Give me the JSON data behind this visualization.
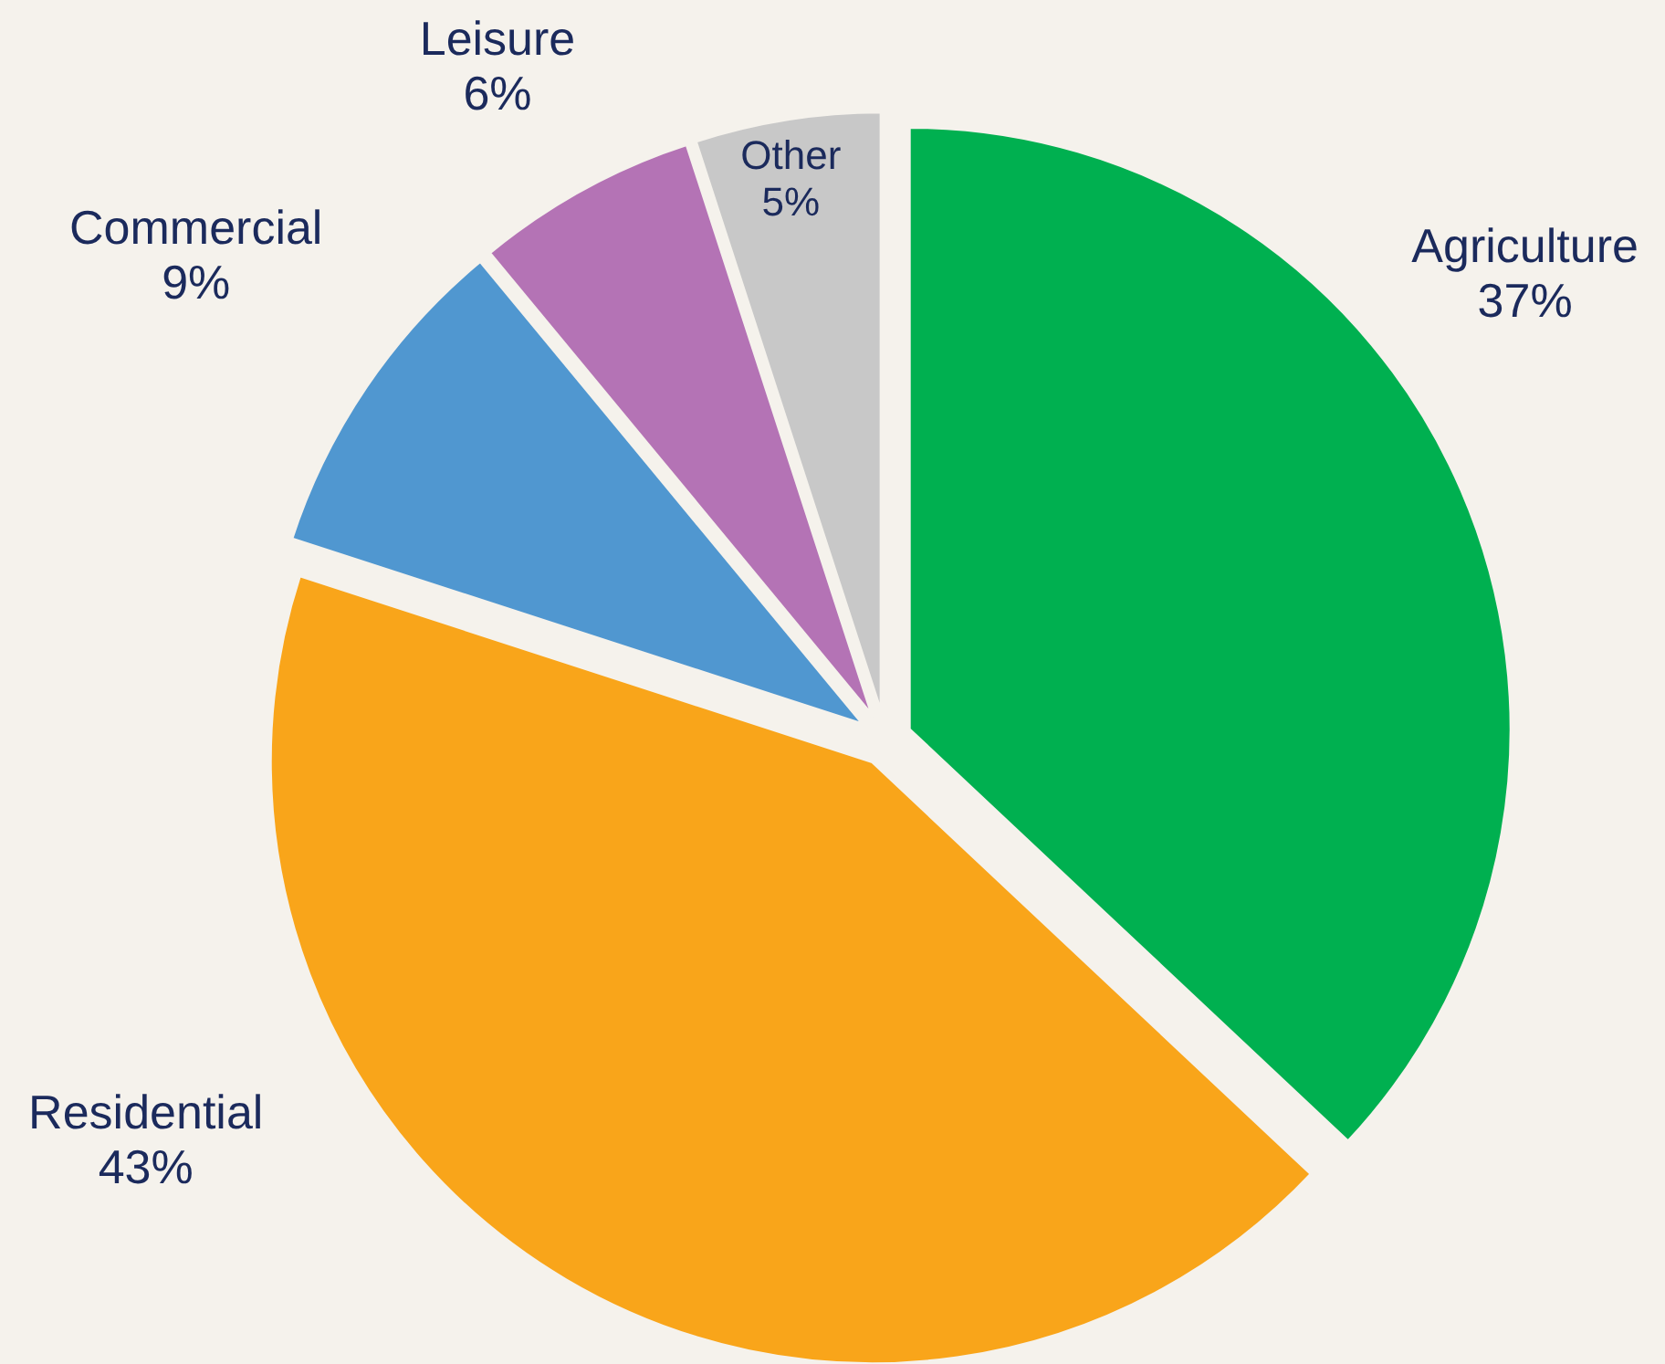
{
  "chart_data": {
    "type": "pie",
    "categories": [
      "Agriculture",
      "Residential",
      "Commercial",
      "Leisure",
      "Other"
    ],
    "values": [
      37,
      43,
      9,
      6,
      5
    ],
    "value_labels": [
      "37%",
      "43%",
      "9%",
      "6%",
      "5%"
    ],
    "colors": [
      "#00b050",
      "#f9a51a",
      "#5097d0",
      "#b473b5",
      "#c8c8c8"
    ]
  }
}
